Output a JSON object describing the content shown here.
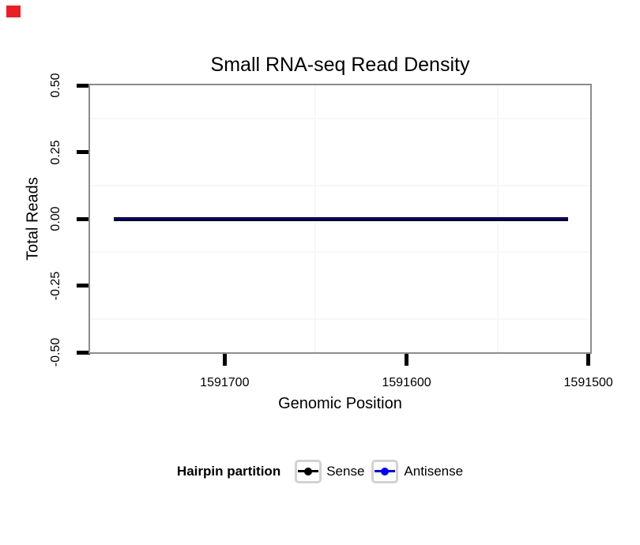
{
  "red_marker": {
    "color": "#EE1C25"
  },
  "chart": {
    "title": "Small RNA-seq Read Density",
    "x_axis": {
      "label": "Genomic Position"
    },
    "y_axis": {
      "label": "Total Reads"
    }
  },
  "legend": {
    "title": "Hairpin partition",
    "items": [
      {
        "label": "Sense",
        "color": "#000000"
      },
      {
        "label": "Antisense",
        "color": "#0000FF"
      }
    ]
  },
  "chart_data": {
    "type": "line",
    "title": "Small RNA-seq Read Density",
    "xlabel": "Genomic Position",
    "ylabel": "Total Reads",
    "x_axis_reversed": true,
    "x_range": [
      1591774,
      1591499
    ],
    "x_ticks": [
      1591700,
      1591600,
      1591500
    ],
    "x_tick_labels": [
      "1591700",
      "1591600",
      "1591500"
    ],
    "ylim": [
      -0.5,
      0.5
    ],
    "y_ticks": [
      0.5,
      0.25,
      0,
      -0.25,
      -0.5
    ],
    "y_tick_labels": [
      "0.50",
      "0.25",
      "0.00",
      "-0.25",
      "-0.50"
    ],
    "grid": {
      "major": false,
      "minor": true,
      "minor_color": "#f7f7f7"
    },
    "panel_border_color": "#8C8C8C",
    "legend_title": "Hairpin partition",
    "legend_position": "bottom",
    "series": [
      {
        "name": "Sense",
        "color": "#000000",
        "y_constant": 0,
        "x_from": 1591761,
        "x_to": 1591511
      },
      {
        "name": "Antisense",
        "color": "#0000FF",
        "y_constant": 0,
        "x_from": 1591761,
        "x_to": 1591511
      }
    ]
  }
}
